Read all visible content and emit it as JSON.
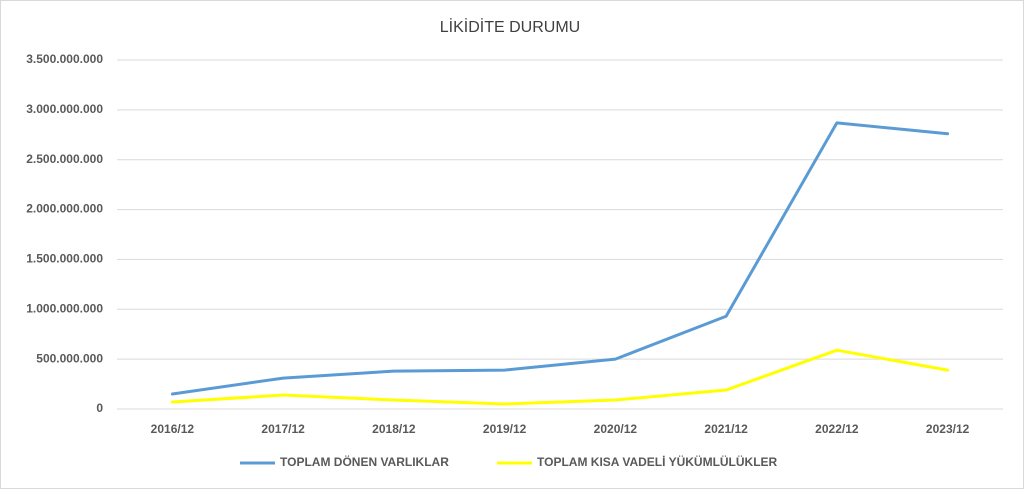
{
  "chart_data": {
    "type": "line",
    "title": "LİKİDİTE DURUMU",
    "categories": [
      "2016/12",
      "2017/12",
      "2018/12",
      "2019/12",
      "2020/12",
      "2021/12",
      "2022/12",
      "2023/12"
    ],
    "series": [
      {
        "name": "TOPLAM DÖNEN VARLIKLAR",
        "color": "#5b9bd5",
        "values": [
          150000000,
          310000000,
          380000000,
          390000000,
          500000000,
          930000000,
          2870000000,
          2760000000
        ]
      },
      {
        "name": "TOPLAM KISA VADELİ YÜKÜMLÜLÜKLER",
        "color": "#ffff00",
        "values": [
          70000000,
          140000000,
          90000000,
          50000000,
          90000000,
          190000000,
          590000000,
          390000000
        ]
      }
    ],
    "ylim": [
      0,
      3500000000
    ],
    "yticks": [
      0,
      {
        "value": 500000000,
        "label": "500.000.000"
      },
      {
        "value": 1000000000,
        "label": "1.000.000.000"
      },
      {
        "value": 1500000000,
        "label": "1.500.000.000"
      },
      {
        "value": 2000000000,
        "label": "2.000.000.000"
      },
      {
        "value": 2500000000,
        "label": "2.500.000.000"
      },
      {
        "value": 3000000000,
        "label": "3.000.000.000"
      },
      {
        "value": 3500000000,
        "label": "3.500.000.000"
      }
    ],
    "grid": true,
    "legend": "bottom"
  }
}
